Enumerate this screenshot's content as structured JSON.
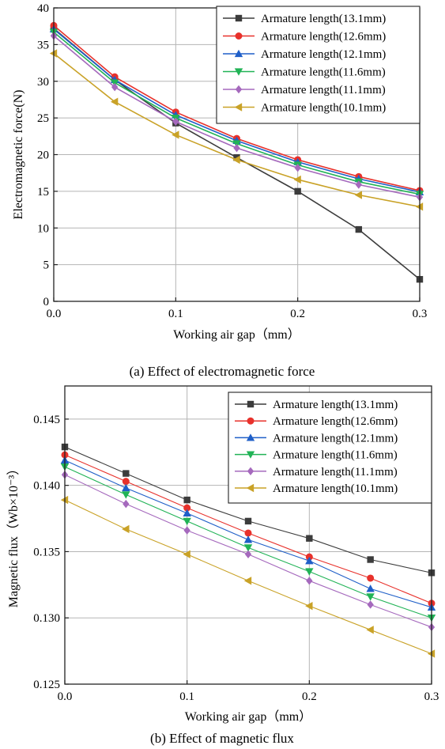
{
  "chart_data": [
    {
      "type": "line",
      "caption": "(a) Effect of electromagnetic force",
      "xlabel": "Working air gap（mm）",
      "ylabel": "Electromagnetic force(N)",
      "xlim": [
        0,
        0.3
      ],
      "ylim": [
        0,
        40
      ],
      "xticks": [
        "0.0",
        "0.1",
        "0.2",
        "0.3"
      ],
      "yticks": [
        "0",
        "5",
        "10",
        "15",
        "20",
        "25",
        "30",
        "35",
        "40"
      ],
      "grid": true,
      "legend_position": "top-right",
      "x": [
        0,
        0.05,
        0.1,
        0.15,
        0.2,
        0.25,
        0.3
      ],
      "series": [
        {
          "name": "Armature length(13.1mm)",
          "color": "#3c3c3c",
          "marker": "square",
          "values": [
            37.2,
            30.2,
            24.3,
            19.6,
            15.0,
            9.8,
            3.0
          ]
        },
        {
          "name": "Armature length(12.6mm)",
          "color": "#e8312b",
          "marker": "circle",
          "values": [
            37.6,
            30.6,
            25.8,
            22.2,
            19.3,
            17.0,
            15.1
          ]
        },
        {
          "name": "Armature length(12.1mm)",
          "color": "#1f5fc8",
          "marker": "triangle-up",
          "values": [
            37.1,
            30.2,
            25.4,
            21.9,
            19.0,
            16.7,
            14.9
          ]
        },
        {
          "name": "Armature length(11.6mm)",
          "color": "#21b356",
          "marker": "triangle-down",
          "values": [
            36.7,
            29.8,
            25.0,
            21.5,
            18.6,
            16.3,
            14.6
          ]
        },
        {
          "name": "Armature length(11.1mm)",
          "color": "#a569bd",
          "marker": "diamond",
          "values": [
            36.2,
            29.2,
            24.5,
            20.9,
            18.2,
            15.9,
            14.2
          ]
        },
        {
          "name": "Armature length(10.1mm)",
          "color": "#c9a227",
          "marker": "triangle-left",
          "values": [
            33.8,
            27.2,
            22.7,
            19.3,
            16.6,
            14.5,
            12.9
          ]
        }
      ]
    },
    {
      "type": "line",
      "caption": "(b) Effect of magnetic flux",
      "xlabel": "Working air gap（mm）",
      "ylabel": "Magnetic flux（Wb×10⁻³）",
      "xlim": [
        0,
        0.3
      ],
      "ylim": [
        0.125,
        0.1475
      ],
      "xticks": [
        "0.0",
        "0.1",
        "0.2",
        "0.3"
      ],
      "yticks": [
        "0.125",
        "0.130",
        "0.135",
        "0.140",
        "0.145"
      ],
      "grid": true,
      "legend_position": "top-right",
      "x": [
        0,
        0.05,
        0.1,
        0.15,
        0.2,
        0.25,
        0.3
      ],
      "series": [
        {
          "name": "Armature length(13.1mm)",
          "color": "#3c3c3c",
          "marker": "square",
          "values": [
            0.1429,
            0.1409,
            0.1389,
            0.1373,
            0.136,
            0.1344,
            0.1334
          ]
        },
        {
          "name": "Armature length(12.6mm)",
          "color": "#e8312b",
          "marker": "circle",
          "values": [
            0.1423,
            0.1403,
            0.1383,
            0.1364,
            0.1346,
            0.133,
            0.1311
          ]
        },
        {
          "name": "Armature length(12.1mm)",
          "color": "#1f5fc8",
          "marker": "triangle-up",
          "values": [
            0.1419,
            0.1398,
            0.1379,
            0.1359,
            0.1343,
            0.1322,
            0.1308
          ]
        },
        {
          "name": "Armature length(11.6mm)",
          "color": "#21b356",
          "marker": "triangle-down",
          "values": [
            0.1414,
            0.1393,
            0.1373,
            0.1353,
            0.1335,
            0.1316,
            0.13
          ]
        },
        {
          "name": "Armature length(11.1mm)",
          "color": "#a569bd",
          "marker": "diamond",
          "values": [
            0.1408,
            0.1386,
            0.1366,
            0.1348,
            0.1328,
            0.131,
            0.1293
          ]
        },
        {
          "name": "Armature length(10.1mm)",
          "color": "#c9a227",
          "marker": "triangle-left",
          "values": [
            0.1389,
            0.1367,
            0.1348,
            0.1328,
            0.1309,
            0.1291,
            0.1273
          ]
        }
      ]
    }
  ]
}
